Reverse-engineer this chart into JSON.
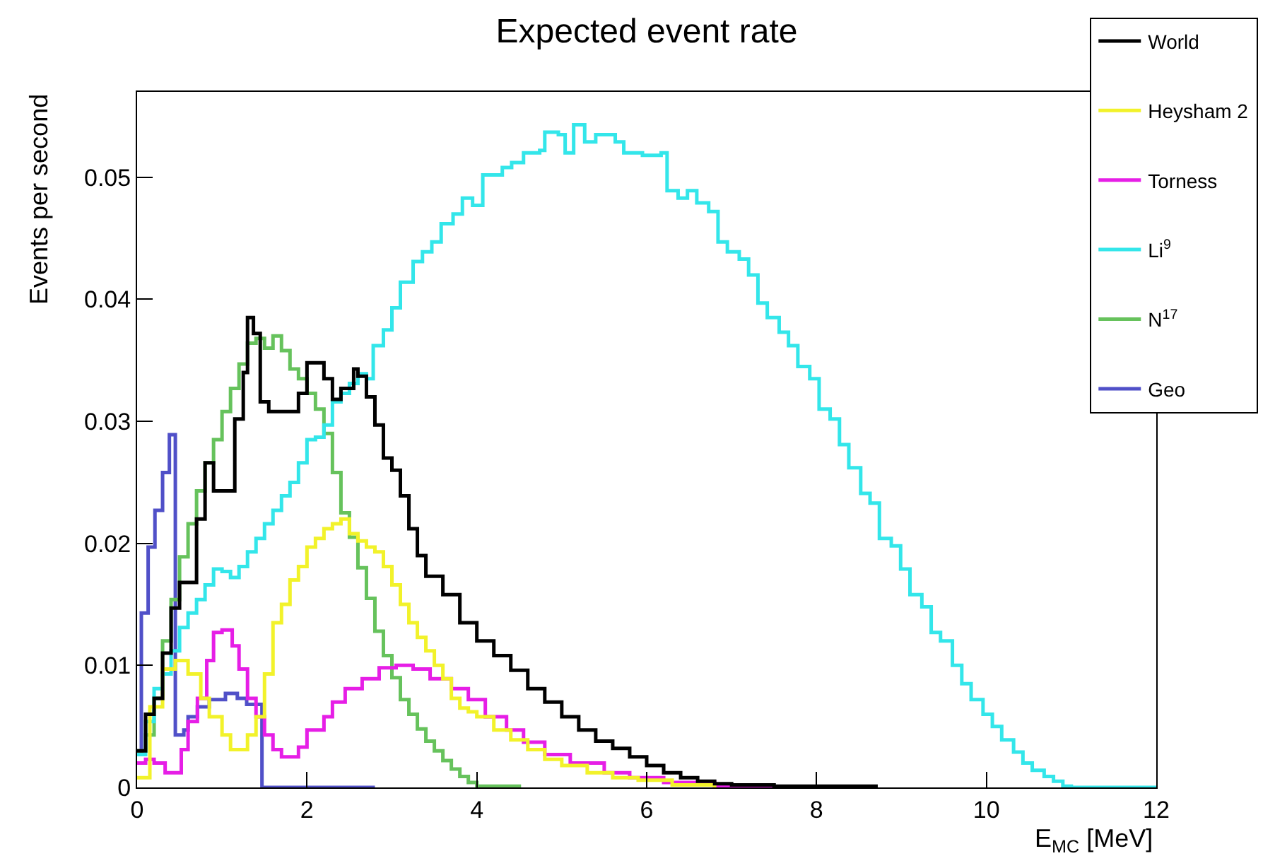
{
  "chart_data": {
    "type": "step",
    "title": "Expected event rate",
    "xlabel": "E$_{MC}$ [MeV]",
    "ylabel": "Events per second",
    "xlim": [
      0,
      12
    ],
    "ylim": [
      0,
      0.057
    ],
    "xticks": [
      0,
      2,
      4,
      6,
      8,
      10,
      12
    ],
    "yticks": [
      0,
      0.01,
      0.02,
      0.03,
      0.04,
      0.05
    ],
    "legend": "top right",
    "line_style": "solid",
    "marker": "none",
    "series": [
      {
        "name": "World",
        "color": "#000000",
        "x": [
          0,
          0.1,
          0.2,
          0.3,
          0.4,
          0.5,
          0.7,
          0.8,
          0.9,
          1.0,
          1.15,
          1.25,
          1.3,
          1.37,
          1.45,
          1.55,
          1.9,
          2.0,
          2.2,
          2.3,
          2.4,
          2.55,
          2.6,
          2.7,
          2.8,
          2.9,
          3.0,
          3.1,
          3.2,
          3.3,
          3.4,
          3.6,
          3.8,
          4.0,
          4.2,
          4.4,
          4.6,
          4.8,
          5.0,
          5.2,
          5.4,
          5.6,
          5.8,
          6.0,
          6.2,
          6.4,
          6.6,
          6.8,
          7.0,
          7.5,
          8.0,
          8.7
        ],
        "values": [
          0.003,
          0.006,
          0.0073,
          0.011,
          0.0147,
          0.0168,
          0.022,
          0.0266,
          0.0243,
          0.0243,
          0.0302,
          0.034,
          0.0385,
          0.0372,
          0.0316,
          0.0308,
          0.0323,
          0.0348,
          0.0335,
          0.0318,
          0.0327,
          0.0343,
          0.0337,
          0.032,
          0.0297,
          0.027,
          0.026,
          0.0239,
          0.0212,
          0.019,
          0.0173,
          0.0158,
          0.0135,
          0.012,
          0.0108,
          0.0096,
          0.0081,
          0.007,
          0.0058,
          0.0047,
          0.0038,
          0.0032,
          0.0025,
          0.0018,
          0.0012,
          0.0008,
          0.0005,
          0.0003,
          0.0002,
          0.0001,
          0.0001,
          0
        ]
      },
      {
        "name": "Heysham 2",
        "color": "#f2f22a",
        "x": [
          0,
          0.15,
          0.3,
          0.45,
          0.6,
          0.75,
          0.85,
          1.0,
          1.1,
          1.3,
          1.4,
          1.5,
          1.6,
          1.7,
          1.8,
          1.9,
          2.0,
          2.1,
          2.2,
          2.3,
          2.4,
          2.5,
          2.6,
          2.7,
          2.8,
          2.9,
          3.0,
          3.1,
          3.2,
          3.3,
          3.4,
          3.5,
          3.6,
          3.7,
          3.8,
          3.9,
          4.0,
          4.2,
          4.4,
          4.6,
          4.8,
          5.0,
          5.3,
          5.6,
          5.9,
          6.3,
          6.8
        ],
        "values": [
          0.0008,
          0.0066,
          0.0097,
          0.0104,
          0.0093,
          0.0073,
          0.0058,
          0.0043,
          0.0031,
          0.0043,
          0.0058,
          0.0093,
          0.0135,
          0.015,
          0.017,
          0.0181,
          0.0197,
          0.0204,
          0.0212,
          0.0216,
          0.022,
          0.0208,
          0.0202,
          0.0197,
          0.0193,
          0.0181,
          0.0166,
          0.015,
          0.0135,
          0.0123,
          0.0112,
          0.01,
          0.0089,
          0.0073,
          0.0065,
          0.0062,
          0.0058,
          0.0047,
          0.0039,
          0.0031,
          0.0023,
          0.0018,
          0.0012,
          0.0008,
          0.0006,
          0.0002,
          0
        ]
      },
      {
        "name": "Torness",
        "color": "#e61ee6",
        "x": [
          0,
          0.1,
          0.2,
          0.33,
          0.52,
          0.6,
          0.71,
          0.82,
          0.9,
          1.0,
          1.12,
          1.2,
          1.3,
          1.4,
          1.5,
          1.6,
          1.7,
          1.9,
          2.0,
          2.2,
          2.3,
          2.45,
          2.65,
          2.85,
          3.05,
          3.25,
          3.45,
          3.7,
          3.9,
          4.1,
          4.35,
          4.55,
          4.8,
          5.1,
          5.5,
          5.8,
          6.2,
          6.8,
          7.5
        ],
        "values": [
          0.002,
          0.0023,
          0.002,
          0.0012,
          0.0031,
          0.0054,
          0.0073,
          0.0104,
          0.0127,
          0.0129,
          0.0116,
          0.0097,
          0.0073,
          0.0058,
          0.0043,
          0.0031,
          0.0025,
          0.0033,
          0.0047,
          0.0058,
          0.007,
          0.0081,
          0.0089,
          0.0098,
          0.01,
          0.0097,
          0.0089,
          0.0081,
          0.0072,
          0.0058,
          0.0047,
          0.0037,
          0.0027,
          0.002,
          0.0012,
          0.0008,
          0.0004,
          0.0001,
          0
        ]
      },
      {
        "name": "Li$^{9}$",
        "color": "#33e6ea",
        "x": [
          0,
          0.1,
          0.2,
          0.3,
          0.4,
          0.5,
          0.6,
          0.7,
          0.8,
          0.9,
          1.0,
          1.1,
          1.2,
          1.3,
          1.4,
          1.5,
          1.6,
          1.7,
          1.8,
          1.9,
          2.0,
          2.1,
          2.2,
          2.3,
          2.4,
          2.5,
          2.6,
          2.7,
          2.78,
          2.9,
          3.0,
          3.1,
          3.25,
          3.36,
          3.47,
          3.58,
          3.72,
          3.83,
          3.95,
          4.07,
          4.3,
          4.41,
          4.55,
          4.74,
          4.8,
          4.96,
          5.04,
          5.14,
          5.27,
          5.4,
          5.63,
          5.73,
          5.95,
          6.17,
          6.24,
          6.37,
          6.48,
          6.59,
          6.73,
          6.84,
          6.95,
          7.09,
          7.2,
          7.31,
          7.42,
          7.56,
          7.67,
          7.78,
          7.92,
          8.03,
          8.16,
          8.27,
          8.38,
          8.52,
          8.63,
          8.74,
          8.88,
          8.99,
          9.1,
          9.24,
          9.35,
          9.46,
          9.6,
          9.71,
          9.82,
          9.96,
          10.07,
          10.18,
          10.32,
          10.43,
          10.54,
          10.68,
          10.79,
          10.9,
          11.0,
          12.0
        ],
        "values": [
          0.0027,
          0.0054,
          0.0081,
          0.0093,
          0.0112,
          0.0131,
          0.0143,
          0.0154,
          0.0166,
          0.0179,
          0.0177,
          0.0172,
          0.0181,
          0.0193,
          0.0204,
          0.0216,
          0.0227,
          0.0239,
          0.025,
          0.0266,
          0.0285,
          0.0287,
          0.0297,
          0.0316,
          0.0323,
          0.0331,
          0.0339,
          0.0335,
          0.0362,
          0.0375,
          0.0393,
          0.0414,
          0.0431,
          0.0439,
          0.0447,
          0.0462,
          0.047,
          0.0483,
          0.0477,
          0.0502,
          0.0508,
          0.0512,
          0.052,
          0.0522,
          0.0537,
          0.0535,
          0.052,
          0.0543,
          0.0529,
          0.0535,
          0.0529,
          0.052,
          0.0518,
          0.052,
          0.0489,
          0.0483,
          0.0489,
          0.0479,
          0.0472,
          0.0447,
          0.0439,
          0.0433,
          0.042,
          0.0397,
          0.0385,
          0.0373,
          0.0362,
          0.0345,
          0.0335,
          0.031,
          0.0302,
          0.0281,
          0.0262,
          0.0241,
          0.0233,
          0.0204,
          0.0198,
          0.0179,
          0.0158,
          0.0148,
          0.0127,
          0.012,
          0.01,
          0.0085,
          0.0072,
          0.006,
          0.005,
          0.0039,
          0.0029,
          0.002,
          0.0014,
          0.0009,
          0.0005,
          0.0001,
          0,
          0
        ]
      },
      {
        "name": "N$^{17}$",
        "color": "#66c25c",
        "x": [
          0,
          0.1,
          0.2,
          0.3,
          0.4,
          0.5,
          0.6,
          0.7,
          0.8,
          0.9,
          1.0,
          1.1,
          1.2,
          1.3,
          1.4,
          1.5,
          1.6,
          1.7,
          1.8,
          1.9,
          2.0,
          2.1,
          2.2,
          2.3,
          2.4,
          2.5,
          2.6,
          2.7,
          2.8,
          2.9,
          3.0,
          3.1,
          3.2,
          3.3,
          3.4,
          3.5,
          3.6,
          3.7,
          3.8,
          3.9,
          4.0,
          4.5
        ],
        "values": [
          0.003,
          0.0043,
          0.0073,
          0.012,
          0.0154,
          0.0189,
          0.0216,
          0.0243,
          0.0266,
          0.0285,
          0.0308,
          0.0327,
          0.0347,
          0.0364,
          0.0368,
          0.036,
          0.037,
          0.0358,
          0.0343,
          0.0335,
          0.0323,
          0.031,
          0.029,
          0.0258,
          0.0225,
          0.0205,
          0.018,
          0.0155,
          0.0128,
          0.0108,
          0.009,
          0.0072,
          0.006,
          0.0048,
          0.0038,
          0.003,
          0.0022,
          0.0015,
          0.0009,
          0.0004,
          0.0001,
          0
        ]
      },
      {
        "name": "Geo",
        "color": "#5050c8",
        "x": [
          0,
          0.05,
          0.13,
          0.21,
          0.3,
          0.38,
          0.45,
          0.55,
          0.6,
          0.71,
          0.85,
          1.04,
          1.18,
          1.29,
          1.47,
          2.8
        ],
        "values": [
          0.0027,
          0.0143,
          0.0197,
          0.0227,
          0.0258,
          0.0289,
          0.0043,
          0.0047,
          0.0058,
          0.0066,
          0.0072,
          0.0077,
          0.0073,
          0.0068,
          0,
          0
        ]
      }
    ]
  }
}
